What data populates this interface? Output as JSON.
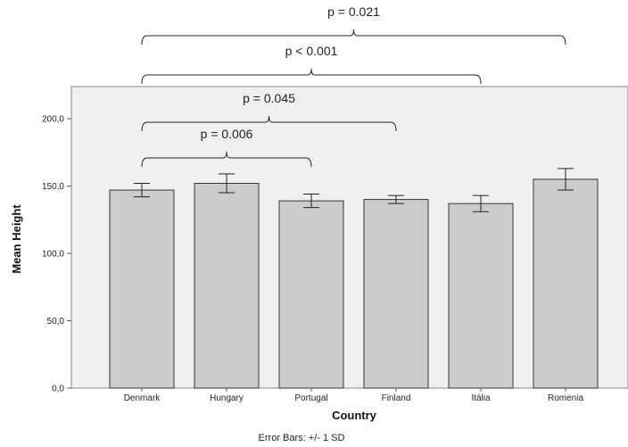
{
  "chart_data": {
    "type": "bar",
    "categories": [
      "Denmark",
      "Hungary",
      "Portugal",
      "Finland",
      "Itália",
      "Romenia"
    ],
    "values": [
      147,
      152,
      139,
      140,
      137,
      155
    ],
    "error_sd": [
      5,
      7,
      5,
      3,
      6,
      8
    ],
    "xlabel": "Country",
    "ylabel": "Mean Height",
    "ylim": [
      0,
      200
    ],
    "yticks": [
      0,
      50,
      100,
      150,
      200
    ],
    "ytick_labels": [
      "0,0",
      "50,0",
      "100,0",
      "150,0",
      "200,0"
    ],
    "footnote": "Error Bars: +/- 1 SD",
    "bar_color": "#cccccc",
    "plot_background": "#f0f0f0",
    "annotations": [
      {
        "text": "p = 0.021",
        "from": "Denmark",
        "to": "Romenia"
      },
      {
        "text": "p < 0.001",
        "from": "Denmark",
        "to": "Itália"
      },
      {
        "text": "p = 0.045",
        "from": "Denmark",
        "to": "Finland"
      },
      {
        "text": "p = 0.006",
        "from": "Denmark",
        "to": "Portugal"
      }
    ]
  }
}
